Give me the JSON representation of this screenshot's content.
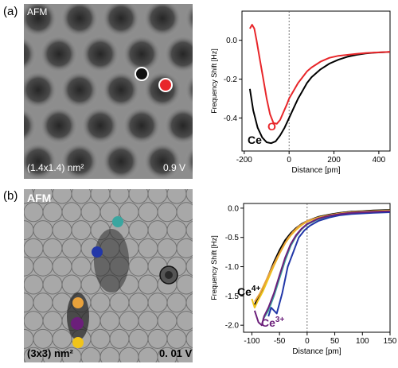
{
  "panel_a": {
    "letter": "(a)",
    "image_label": "AFM",
    "scale_label": "(1.4x1.4) nm²",
    "bias_label": "0.9 V",
    "markers": [
      {
        "name": "ce-site-marker",
        "color": "#111111"
      },
      {
        "name": "o-site-marker",
        "color": "#e8262a"
      }
    ]
  },
  "panel_b": {
    "letter": "(b)",
    "image_label": "AFM",
    "scale_label": "(3x3) nm²",
    "bias_label": "0. 01 V",
    "markers": [
      {
        "name": "teal-marker",
        "color": "#3aa6a0"
      },
      {
        "name": "blue-marker",
        "color": "#2237a8"
      },
      {
        "name": "dark-marker",
        "color": "#3a3a3a"
      },
      {
        "name": "orange-marker",
        "color": "#e9a23b"
      },
      {
        "name": "purple-marker",
        "color": "#6b1f7a"
      },
      {
        "name": "yellow-marker",
        "color": "#f0c419"
      }
    ]
  },
  "chart_data": [
    {
      "type": "line",
      "xlabel": "Distance [pm]",
      "ylabel": "Frequency Shift [Hz]",
      "xlim": [
        -210,
        450
      ],
      "ylim": [
        -0.57,
        0.15
      ],
      "xticks": [
        "-200",
        "0",
        "200",
        "400"
      ],
      "xtick_values": [
        -200,
        0,
        200,
        400
      ],
      "yticks": [
        "0.0",
        "-0.2",
        "-0.4"
      ],
      "ytick_values": [
        0.0,
        -0.2,
        -0.4
      ],
      "vline_x": 0,
      "series": [
        {
          "name": "Ce",
          "color": "#000000",
          "x": [
            -175,
            -160,
            -140,
            -120,
            -100,
            -80,
            -60,
            -40,
            -20,
            0,
            20,
            40,
            60,
            80,
            100,
            140,
            180,
            220,
            260,
            300,
            340,
            380,
            420,
            450
          ],
          "y": [
            -0.25,
            -0.36,
            -0.45,
            -0.5,
            -0.525,
            -0.53,
            -0.52,
            -0.49,
            -0.45,
            -0.4,
            -0.35,
            -0.3,
            -0.26,
            -0.22,
            -0.19,
            -0.15,
            -0.12,
            -0.1,
            -0.085,
            -0.075,
            -0.068,
            -0.064,
            -0.062,
            -0.06
          ]
        },
        {
          "name": "O",
          "color": "#e8262a",
          "x": [
            -175,
            -165,
            -155,
            -145,
            -130,
            -115,
            -100,
            -85,
            -70,
            -55,
            -40,
            -25,
            -10,
            0,
            20,
            40,
            60,
            80,
            100,
            140,
            180,
            220,
            260,
            300,
            340,
            380,
            420,
            450
          ],
          "y": [
            0.06,
            0.08,
            0.06,
            0.0,
            -0.1,
            -0.2,
            -0.3,
            -0.38,
            -0.425,
            -0.43,
            -0.41,
            -0.37,
            -0.33,
            -0.3,
            -0.26,
            -0.22,
            -0.19,
            -0.16,
            -0.14,
            -0.11,
            -0.09,
            -0.08,
            -0.075,
            -0.07,
            -0.066,
            -0.063,
            -0.061,
            -0.06
          ]
        }
      ],
      "annotations": [
        {
          "text": "O",
          "color": "#e8262a"
        },
        {
          "text": "Ce",
          "color": "#000000"
        }
      ]
    },
    {
      "type": "line",
      "xlabel": "Distance [pm]",
      "ylabel": "Frequency Shift [Hz]",
      "xlim": [
        -115,
        150
      ],
      "ylim": [
        -2.12,
        0.08
      ],
      "xticks": [
        "-100",
        "-50",
        "0",
        "50",
        "100",
        "150"
      ],
      "xtick_values": [
        -100,
        -50,
        0,
        50,
        100,
        150
      ],
      "yticks": [
        "0.0",
        "-0.5",
        "-1.0",
        "-1.5",
        "-2.0"
      ],
      "ytick_values": [
        0.0,
        -0.5,
        -1.0,
        -1.5,
        -2.0
      ],
      "vline_x": 0,
      "series": [
        {
          "name": "black",
          "color": "#000000",
          "x": [
            -95,
            -90,
            -80,
            -70,
            -60,
            -50,
            -40,
            -30,
            -20,
            -10,
            0,
            20,
            40,
            60,
            80,
            100,
            120,
            150
          ],
          "y": [
            -1.65,
            -1.55,
            -1.38,
            -1.15,
            -0.92,
            -0.72,
            -0.55,
            -0.43,
            -0.34,
            -0.27,
            -0.22,
            -0.15,
            -0.11,
            -0.08,
            -0.06,
            -0.05,
            -0.04,
            -0.03
          ]
        },
        {
          "name": "yellow",
          "color": "#f0c419",
          "x": [
            -100,
            -95,
            -90,
            -80,
            -70,
            -60,
            -50,
            -40,
            -30,
            -20,
            -10,
            0,
            20,
            40,
            60,
            80,
            100,
            120,
            150
          ],
          "y": [
            -1.55,
            -1.7,
            -1.6,
            -1.42,
            -1.2,
            -0.98,
            -0.78,
            -0.6,
            -0.47,
            -0.37,
            -0.29,
            -0.23,
            -0.16,
            -0.12,
            -0.09,
            -0.07,
            -0.06,
            -0.05,
            -0.04
          ]
        },
        {
          "name": "orange",
          "color": "#e9a23b",
          "x": [
            -95,
            -85,
            -75,
            -65,
            -55,
            -45,
            -35,
            -25,
            -15,
            0,
            20,
            40,
            60,
            80,
            100,
            150
          ],
          "y": [
            -1.6,
            -1.45,
            -1.25,
            -1.05,
            -0.86,
            -0.68,
            -0.52,
            -0.4,
            -0.31,
            -0.22,
            -0.16,
            -0.12,
            -0.09,
            -0.07,
            -0.06,
            -0.05
          ]
        },
        {
          "name": "teal",
          "color": "#3aa6a0",
          "x": [
            -80,
            -70,
            -60,
            -50,
            -40,
            -30,
            -20,
            -10,
            0,
            20,
            40,
            60,
            80,
            100,
            120,
            150
          ],
          "y": [
            -1.9,
            -1.75,
            -1.5,
            -1.2,
            -0.9,
            -0.65,
            -0.48,
            -0.36,
            -0.28,
            -0.19,
            -0.14,
            -0.11,
            -0.09,
            -0.08,
            -0.07,
            -0.06
          ]
        },
        {
          "name": "blue",
          "color": "#2237a8",
          "x": [
            -70,
            -65,
            -55,
            -45,
            -35,
            -25,
            -15,
            -5,
            5,
            20,
            40,
            60,
            80,
            100,
            120,
            150
          ],
          "y": [
            -1.85,
            -1.7,
            -1.8,
            -1.45,
            -1.0,
            -0.75,
            -0.5,
            -0.38,
            -0.3,
            -0.22,
            -0.16,
            -0.12,
            -0.1,
            -0.09,
            -0.08,
            -0.07
          ]
        },
        {
          "name": "purple",
          "color": "#6b1f7a",
          "x": [
            -95,
            -88,
            -82,
            -78,
            -70,
            -60,
            -50,
            -40,
            -30,
            -20,
            -10,
            0,
            20,
            40,
            60,
            80,
            100,
            150
          ],
          "y": [
            -1.75,
            -1.95,
            -2.0,
            -1.85,
            -1.7,
            -1.45,
            -1.15,
            -0.85,
            -0.62,
            -0.46,
            -0.35,
            -0.27,
            -0.18,
            -0.13,
            -0.1,
            -0.08,
            -0.07,
            -0.05
          ]
        }
      ],
      "annotations": [
        {
          "text": "Ce",
          "sup": "4+",
          "color": "#000000"
        },
        {
          "text": "Ce",
          "sup": "3+",
          "color": "#6b1f7a"
        }
      ]
    }
  ]
}
